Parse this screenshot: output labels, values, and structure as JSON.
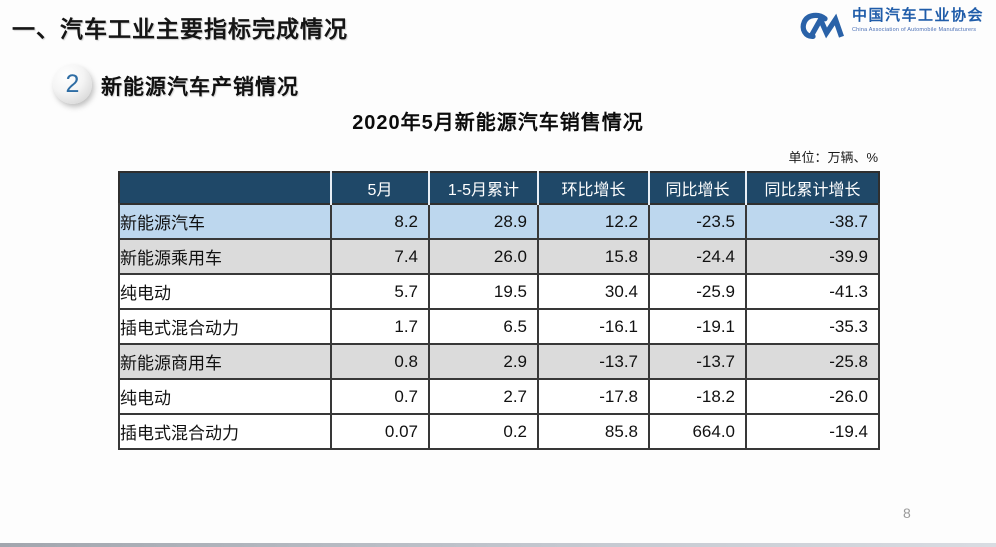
{
  "header": {
    "title": "一、汽车工业主要指标完成情况"
  },
  "logo": {
    "name_cn": "中国汽车工业协会",
    "name_en": "China Association of Automobile Manufacturers",
    "brand_blue": "#2A62A8"
  },
  "section": {
    "number": "2",
    "title": "新能源汽车产销情况"
  },
  "table": {
    "title": "2020年5月新能源汽车销售情况",
    "unit": "单位：万辆、%",
    "columns": [
      "",
      "5月",
      "1-5月累计",
      "环比增长",
      "同比增长",
      "同比累计增长"
    ],
    "rows": [
      {
        "label": "新能源汽车",
        "indent": 0,
        "style": "highlight",
        "values": [
          "8.2",
          "28.9",
          "12.2",
          "-23.5",
          "-38.7"
        ]
      },
      {
        "label": "新能源乘用车",
        "indent": 1,
        "style": "sub",
        "values": [
          "7.4",
          "26.0",
          "15.8",
          "-24.4",
          "-39.9"
        ]
      },
      {
        "label": "纯电动",
        "indent": 2,
        "style": "plain",
        "values": [
          "5.7",
          "19.5",
          "30.4",
          "-25.9",
          "-41.3"
        ]
      },
      {
        "label": "插电式混合动力",
        "indent": 2,
        "style": "plain",
        "values": [
          "1.7",
          "6.5",
          "-16.1",
          "-19.1",
          "-35.3"
        ]
      },
      {
        "label": "新能源商用车",
        "indent": 1,
        "style": "sub",
        "values": [
          "0.8",
          "2.9",
          "-13.7",
          "-13.7",
          "-25.8"
        ]
      },
      {
        "label": "纯电动",
        "indent": 2,
        "style": "plain",
        "values": [
          "0.7",
          "2.7",
          "-17.8",
          "-18.2",
          "-26.0"
        ]
      },
      {
        "label": "插电式混合动力",
        "indent": 2,
        "style": "plain",
        "values": [
          "0.07",
          "0.2",
          "85.8",
          "664.0",
          "-19.4"
        ]
      }
    ]
  },
  "footer": {
    "page_number": "8"
  },
  "colors": {
    "table_header_bg": "#1F4868",
    "row_highlight": "#BDD7EE",
    "row_sub": "#DBDBDB",
    "badge_number": "#2E6DA4"
  }
}
